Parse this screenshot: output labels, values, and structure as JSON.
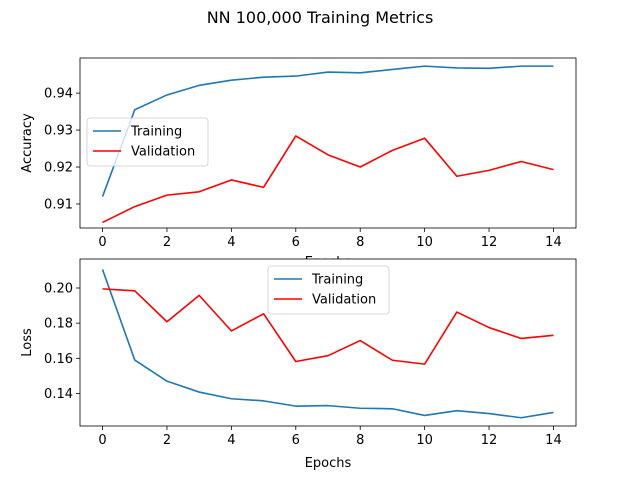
{
  "figure": {
    "title": "NN 100,000 Training Metrics"
  },
  "chart_data": [
    {
      "type": "line",
      "ylabel": "Accuracy",
      "xlabel": "Epochs",
      "xlim": [
        -0.7,
        14.7
      ],
      "ylim": [
        0.9035,
        0.9495
      ],
      "xticks": [
        0,
        2,
        4,
        6,
        8,
        10,
        12,
        14
      ],
      "yticks": [
        0.91,
        0.92,
        0.93,
        0.94
      ],
      "ytick_labels": [
        "0.91",
        "0.92",
        "0.93",
        "0.94"
      ],
      "legend_placement": "center-left",
      "x": [
        0,
        1,
        2,
        3,
        4,
        5,
        6,
        7,
        8,
        9,
        10,
        11,
        12,
        13,
        14
      ],
      "series": [
        {
          "name": "Training",
          "color": "#1f77b4",
          "values": [
            0.912,
            0.9355,
            0.9395,
            0.9421,
            0.9435,
            0.9443,
            0.9446,
            0.9457,
            0.9455,
            0.9464,
            0.9473,
            0.9468,
            0.9467,
            0.9473,
            0.9473
          ]
        },
        {
          "name": "Validation",
          "color": "#ff0000",
          "values": [
            0.905,
            0.9093,
            0.9124,
            0.9133,
            0.9165,
            0.9145,
            0.9284,
            0.9233,
            0.92,
            0.9245,
            0.9278,
            0.9175,
            0.9191,
            0.9215,
            0.9193
          ]
        }
      ]
    },
    {
      "type": "line",
      "ylabel": "Loss",
      "xlabel": "Epochs",
      "xlim": [
        -0.7,
        14.7
      ],
      "ylim": [
        0.1215,
        0.2165
      ],
      "xticks": [
        0,
        2,
        4,
        6,
        8,
        10,
        12,
        14
      ],
      "yticks": [
        0.14,
        0.16,
        0.18,
        0.2
      ],
      "ytick_labels": [
        "0.14",
        "0.16",
        "0.18",
        "0.20"
      ],
      "legend_placement": "upper-center",
      "x": [
        0,
        1,
        2,
        3,
        4,
        5,
        6,
        7,
        8,
        9,
        10,
        11,
        12,
        13,
        14
      ],
      "series": [
        {
          "name": "Training",
          "color": "#1f77b4",
          "values": [
            0.2105,
            0.159,
            0.147,
            0.1408,
            0.137,
            0.1358,
            0.1328,
            0.1331,
            0.1316,
            0.1313,
            0.1275,
            0.1302,
            0.1286,
            0.1262,
            0.1292
          ]
        },
        {
          "name": "Validation",
          "color": "#ff0000",
          "values": [
            0.1995,
            0.1984,
            0.1808,
            0.1958,
            0.1756,
            0.1853,
            0.1582,
            0.1615,
            0.1701,
            0.1589,
            0.1567,
            0.1863,
            0.1775,
            0.1713,
            0.1731
          ]
        }
      ]
    }
  ]
}
